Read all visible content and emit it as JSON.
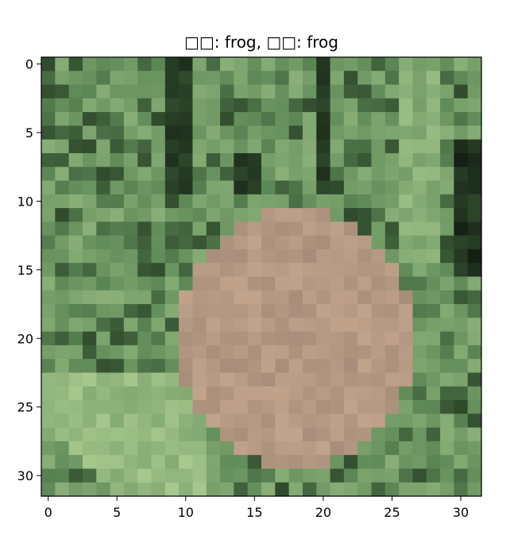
{
  "chart_data": {
    "type": "image",
    "title": "□□: frog, □□: frog",
    "image_size": [
      32,
      32
    ],
    "xlim": [
      -0.5,
      31.5
    ],
    "ylim": [
      31.5,
      -0.5
    ],
    "y_inverted": true,
    "grid": false,
    "xticks": [
      0,
      5,
      10,
      15,
      20,
      25,
      30
    ],
    "yticks": [
      0,
      5,
      10,
      15,
      20,
      25,
      30
    ],
    "xtick_labels": [
      "0",
      "5",
      "10",
      "15",
      "20",
      "25",
      "30"
    ],
    "ytick_labels": [
      "0",
      "5",
      "10",
      "15",
      "20",
      "25",
      "30"
    ],
    "description_colors": {
      "grass_dark": "#2f4a2c",
      "grass_mid": "#5f8a58",
      "grass_light": "#a8c98e",
      "frog": "#a88e7a",
      "frog_light": "#c8a890"
    }
  }
}
